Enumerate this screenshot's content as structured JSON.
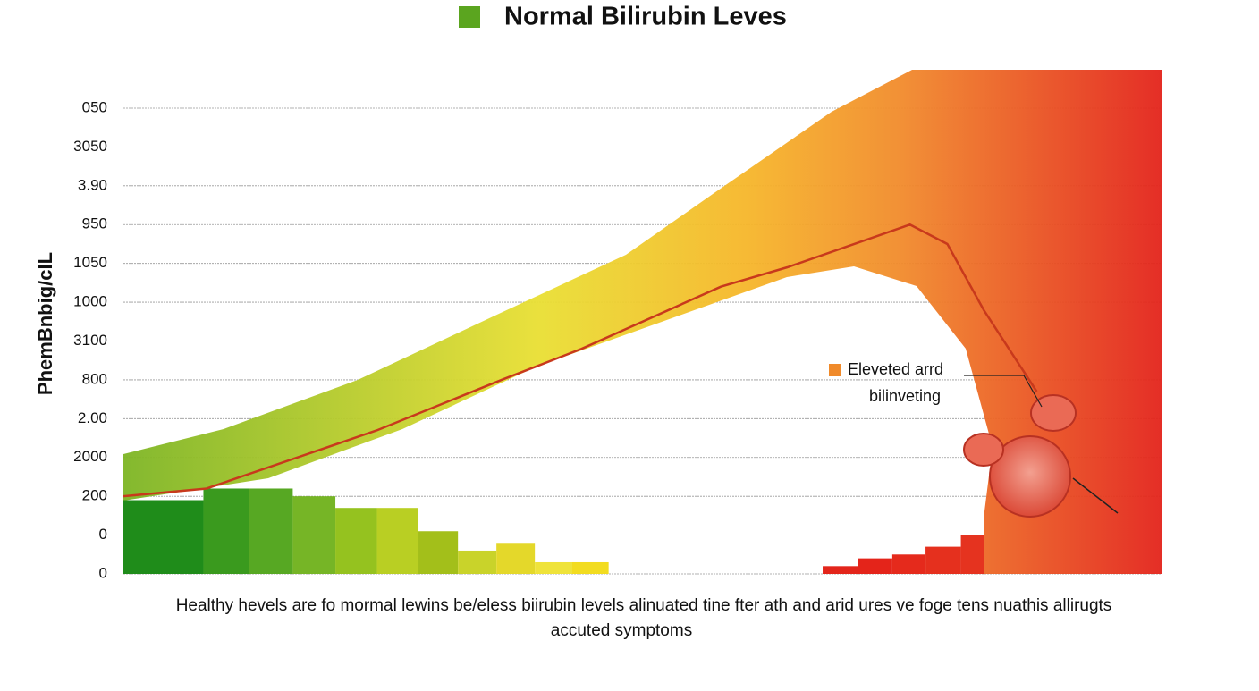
{
  "chart_data": {
    "type": "histogram",
    "title": "Normal Bilirubin Leves",
    "y_label": "PhemBnbig/cIL",
    "annotation": [
      "Eleveted arrd",
      "bilinveting"
    ],
    "caption": [
      "Healthy hevels are fo mormal lewins be/eless biirubin levels alinuated tine fter ath and arid ures ve foge tens nuathis allirugts",
      "accuted symptoms"
    ],
    "ylim": [
      0,
      12
    ],
    "yticks": [
      0,
      {
        "value": 1,
        "label": "0"
      },
      {
        "value": 2,
        "label": "200"
      },
      {
        "value": 3,
        "label": "2000"
      },
      {
        "value": 4,
        "label": "2.00"
      },
      {
        "value": 5,
        "label": "800"
      },
      {
        "value": 6,
        "label": "3100"
      },
      {
        "value": 7,
        "label": "1000"
      },
      {
        "value": 8,
        "label": "1050"
      },
      {
        "value": 9,
        "label": "950"
      },
      {
        "value": 10,
        "label": "3.90"
      },
      {
        "value": 11,
        "label": "3050"
      },
      {
        "value": 12,
        "label": "050"
      }
    ],
    "xlim": [
      0,
      100
    ],
    "grid": true,
    "bins": [
      0,
      7.7,
      12.1,
      16.3,
      20.4,
      24.4,
      28.4,
      32.2,
      35.9,
      39.6,
      43.2,
      46.7,
      67.3,
      70.7,
      74.0,
      77.2,
      80.6,
      82.8
    ],
    "values": [
      1.9,
      2.2,
      2.2,
      2.0,
      1.7,
      1.7,
      1.1,
      0.6,
      0.8,
      0.3,
      0.3,
      0,
      0.2,
      0.4,
      0.5,
      0.7,
      1.0
    ],
    "colors": [
      "#1f8c1a",
      "#3a9a1e",
      "#57a823",
      "#76b526",
      "#95c21f",
      "#b9cf23",
      "#a3bf1a",
      "#c9d32a",
      "#e4d82a",
      "#efe33a",
      "#f2dc20",
      "#ffffff",
      "#e3251b",
      "#e4241a",
      "#e52a1c",
      "#e5301e",
      "#e5331f"
    ],
    "line": {
      "color": "#c8391c",
      "x": [
        0,
        8,
        24.4,
        36.4,
        44.1,
        57.5,
        63.9,
        75.7,
        79.3,
        82.8,
        87.9
      ],
      "values": [
        2.0,
        2.2,
        3.7,
        5.0,
        5.8,
        7.4,
        7.9,
        9.0,
        8.5,
        6.8,
        4.7
      ]
    }
  }
}
